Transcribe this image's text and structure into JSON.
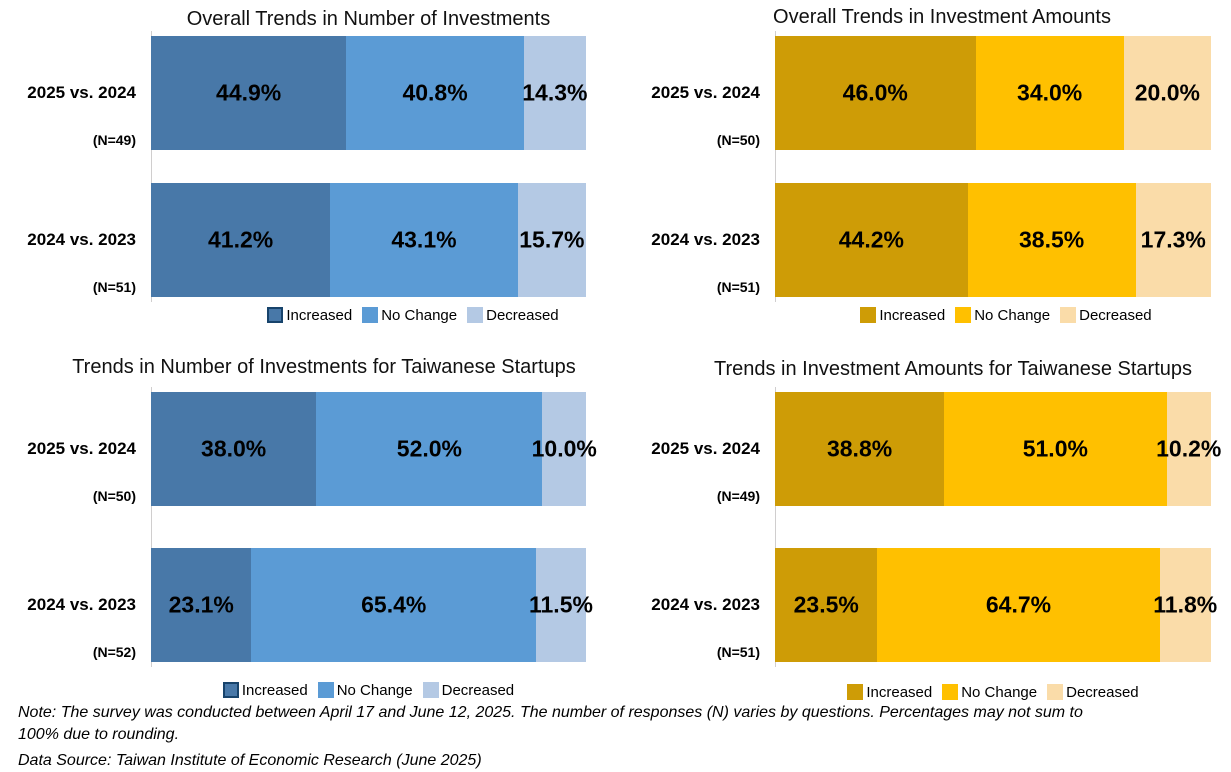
{
  "palettes": {
    "blue": {
      "colors": [
        "#4878A8",
        "#5B9BD5",
        "#B4C9E4"
      ],
      "swatch_borders": [
        "#17436B",
        null,
        null
      ]
    },
    "gold": {
      "colors": [
        "#CE9C06",
        "#FFC000",
        "#FADCA9"
      ],
      "swatch_borders": [
        null,
        null,
        null
      ]
    }
  },
  "chart_data": [
    {
      "type": "bar",
      "orientation": "horizontal-stacked",
      "title": "Overall Trends in Number of Investments",
      "palette": "blue",
      "categories": [
        "2025 vs. 2024",
        "2024 vs. 2023"
      ],
      "n_labels": [
        "(N=49)",
        "(N=51)"
      ],
      "series": [
        {
          "name": "Increased",
          "values": [
            44.9,
            41.2
          ]
        },
        {
          "name": "No Change",
          "values": [
            40.8,
            43.1
          ]
        },
        {
          "name": "Decreased",
          "values": [
            14.3,
            15.7
          ]
        }
      ],
      "legend": [
        "Increased",
        "No Change",
        "Decreased"
      ],
      "legend_position": "bottom",
      "xlim": [
        0,
        100
      ],
      "value_label_format": "0.0%"
    },
    {
      "type": "bar",
      "orientation": "horizontal-stacked",
      "title": "Overall Trends in Investment Amounts",
      "palette": "gold",
      "categories": [
        "2025 vs. 2024",
        "2024 vs. 2023"
      ],
      "n_labels": [
        "(N=50)",
        "(N=51)"
      ],
      "series": [
        {
          "name": "Increased",
          "values": [
            46.0,
            44.2
          ]
        },
        {
          "name": "No Change",
          "values": [
            34.0,
            38.5
          ]
        },
        {
          "name": "Decreased",
          "values": [
            20.0,
            17.3
          ]
        }
      ],
      "legend": [
        "Increased",
        "No Change",
        "Decreased"
      ],
      "legend_position": "bottom",
      "xlim": [
        0,
        100
      ],
      "value_label_format": "0.0%"
    },
    {
      "type": "bar",
      "orientation": "horizontal-stacked",
      "title": "Trends in Number of Investments for Taiwanese Startups",
      "palette": "blue",
      "categories": [
        "2025 vs. 2024",
        "2024 vs. 2023"
      ],
      "n_labels": [
        "(N=50)",
        "(N=52)"
      ],
      "series": [
        {
          "name": "Increased",
          "values": [
            38.0,
            23.1
          ]
        },
        {
          "name": "No Change",
          "values": [
            52.0,
            65.4
          ]
        },
        {
          "name": "Decreased",
          "values": [
            10.0,
            11.5
          ]
        }
      ],
      "legend": [
        "Increased",
        "No Change",
        "Decreased"
      ],
      "legend_position": "bottom",
      "xlim": [
        0,
        100
      ],
      "value_label_format": "0.0%"
    },
    {
      "type": "bar",
      "orientation": "horizontal-stacked",
      "title": "Trends in Investment Amounts for Taiwanese Startups",
      "palette": "gold",
      "categories": [
        "2025 vs. 2024",
        "2024 vs. 2023"
      ],
      "n_labels": [
        "(N=49)",
        "(N=51)"
      ],
      "series": [
        {
          "name": "Increased",
          "values": [
            38.8,
            23.5
          ]
        },
        {
          "name": "No Change",
          "values": [
            51.0,
            64.7
          ]
        },
        {
          "name": "Decreased",
          "values": [
            10.2,
            11.8
          ]
        }
      ],
      "legend": [
        "Increased",
        "No Change",
        "Decreased"
      ],
      "legend_position": "bottom",
      "xlim": [
        0,
        100
      ],
      "value_label_format": "0.0%"
    }
  ],
  "footer": {
    "note_line1": "Note: The survey was conducted between April 17 and  June 12, 2025. The number of responses (N) varies by questions. Percentages may not sum to",
    "note_line2": "100% due to rounding.",
    "data_source": "Data Source: Taiwan Institute of Economic Research (June 2025)"
  }
}
